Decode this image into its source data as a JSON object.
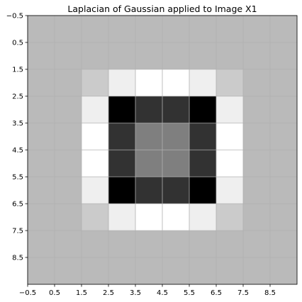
{
  "chart_data": {
    "type": "heatmap",
    "title": "Laplacian of Gaussian applied to Image X1",
    "xlabel": "",
    "ylabel": "",
    "xlim": [
      -0.5,
      9.5
    ],
    "ylim": [
      9.5,
      -0.5
    ],
    "colormap": "gray",
    "grid": true,
    "x_ticks": [
      "−0.5",
      "0.5",
      "1.5",
      "2.5",
      "3.5",
      "4.5",
      "5.5",
      "6.5",
      "7.5",
      "8.5"
    ],
    "y_ticks": [
      "−0.5",
      "0.5",
      "1.5",
      "2.5",
      "3.5",
      "4.5",
      "5.5",
      "6.5",
      "7.5",
      "8.5"
    ],
    "x_tick_values": [
      -0.5,
      0.5,
      1.5,
      2.5,
      3.5,
      4.5,
      5.5,
      6.5,
      7.5,
      8.5
    ],
    "y_tick_values": [
      -0.5,
      0.5,
      1.5,
      2.5,
      3.5,
      4.5,
      5.5,
      6.5,
      7.5,
      8.5
    ],
    "intensity_grid": [
      [
        186,
        186,
        186,
        186,
        186,
        186,
        186,
        186,
        186,
        186
      ],
      [
        186,
        186,
        186,
        186,
        186,
        186,
        186,
        186,
        186,
        186
      ],
      [
        186,
        186,
        203,
        239,
        255,
        255,
        239,
        203,
        186,
        186
      ],
      [
        186,
        186,
        239,
        0,
        50,
        50,
        0,
        239,
        186,
        186
      ],
      [
        186,
        186,
        255,
        50,
        127,
        127,
        50,
        255,
        186,
        186
      ],
      [
        186,
        186,
        255,
        50,
        127,
        127,
        50,
        255,
        186,
        186
      ],
      [
        186,
        186,
        239,
        0,
        50,
        50,
        0,
        239,
        186,
        186
      ],
      [
        186,
        186,
        203,
        239,
        255,
        255,
        239,
        203,
        186,
        186
      ],
      [
        186,
        186,
        186,
        186,
        186,
        186,
        186,
        186,
        186,
        186
      ],
      [
        186,
        186,
        186,
        186,
        186,
        186,
        186,
        186,
        186,
        186
      ]
    ]
  }
}
